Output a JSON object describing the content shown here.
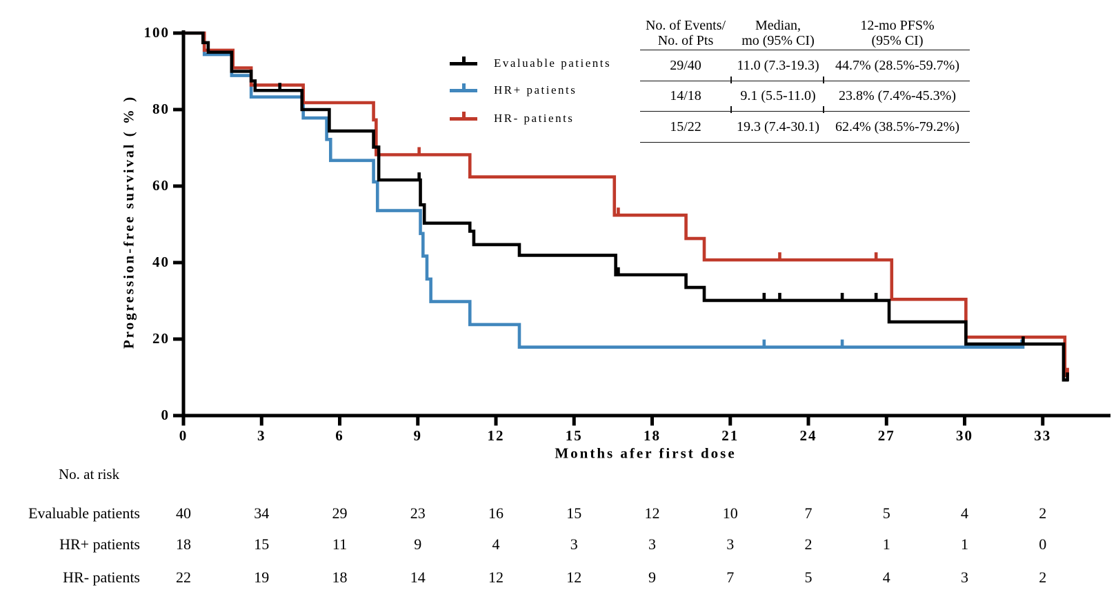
{
  "axes": {
    "x": {
      "label": "Months afer first dose",
      "ticks": [
        0,
        3,
        6,
        9,
        12,
        15,
        18,
        21,
        24,
        27,
        30,
        33
      ]
    },
    "y": {
      "label": "Progression-free survival ( % )",
      "ticks": [
        0,
        20,
        40,
        60,
        80,
        100
      ]
    }
  },
  "legend": [
    {
      "label": "Evaluable patients",
      "color": "#000000"
    },
    {
      "label": "HR+ patients",
      "color": "#4187BD"
    },
    {
      "label": "HR- patients",
      "color": "#C03A2B"
    }
  ],
  "stats_table": {
    "headers": [
      [
        "No. of Events/",
        "No. of Pts"
      ],
      [
        "Median,",
        "mo (95% CI)"
      ],
      [
        "12-mo PFS%",
        "(95% CI)"
      ]
    ],
    "rows": [
      [
        "29/40",
        "11.0 (7.3-19.3)",
        "44.7% (28.5%-59.7%)"
      ],
      [
        "14/18",
        "9.1 (5.5-11.0)",
        "23.8% (7.4%-45.3%)"
      ],
      [
        "15/22",
        "19.3 (7.4-30.1)",
        "62.4% (38.5%-79.2%)"
      ]
    ]
  },
  "risk_table": {
    "title": "No. at risk",
    "months": [
      0,
      3,
      6,
      9,
      12,
      15,
      18,
      21,
      24,
      27,
      30,
      33
    ],
    "rows": [
      {
        "label": "Evaluable patients",
        "values": [
          40,
          34,
          29,
          23,
          16,
          15,
          12,
          10,
          7,
          5,
          4,
          2
        ]
      },
      {
        "label": "HR+ patients",
        "values": [
          18,
          15,
          11,
          9,
          4,
          3,
          3,
          3,
          2,
          1,
          1,
          0
        ]
      },
      {
        "label": "HR- patients",
        "values": [
          22,
          19,
          18,
          14,
          12,
          12,
          9,
          7,
          5,
          4,
          3,
          2
        ]
      }
    ]
  },
  "chart_data": {
    "type": "line",
    "variant": "kaplan-meier-step",
    "title": "",
    "xlabel": "Months afer first dose",
    "ylabel": "Progression-free survival ( % )",
    "xlim": [
      0,
      35.6
    ],
    "ylim": [
      0,
      100
    ],
    "x_ticks": [
      0,
      3,
      6,
      9,
      12,
      15,
      18,
      21,
      24,
      27,
      30,
      33
    ],
    "y_ticks": [
      0,
      20,
      40,
      60,
      80,
      100
    ],
    "grid": false,
    "legend_position": "upper-center-left",
    "series": [
      {
        "name": "Evaluable patients",
        "color": "#000000",
        "n": 40,
        "events": 29,
        "median_months": "11.0 (7.3-19.3)",
        "pfs_12mo": "44.7% (28.5%-59.7%)",
        "start": [
          0,
          100
        ],
        "steps": [
          [
            0.75,
            97.5
          ],
          [
            0.95,
            95
          ],
          [
            1.85,
            90
          ],
          [
            2.6,
            87.5
          ],
          [
            2.75,
            85
          ],
          [
            4.55,
            80
          ],
          [
            5.6,
            74.4
          ],
          [
            7.3,
            70.2
          ],
          [
            7.5,
            61.6
          ],
          [
            9.1,
            55.1
          ],
          [
            9.25,
            50.3
          ],
          [
            11.0,
            48.2
          ],
          [
            11.15,
            44.7
          ],
          [
            12.9,
            41.9
          ],
          [
            16.6,
            36.8
          ],
          [
            19.3,
            33.5
          ],
          [
            20.0,
            30.1
          ],
          [
            27.1,
            24.5
          ],
          [
            30.05,
            18.7
          ],
          [
            33.8,
            9.3
          ]
        ],
        "end_month": 34.0,
        "censor_marks": [
          [
            3.7,
            85
          ],
          [
            9.05,
            61.6
          ],
          [
            16.7,
            36.8
          ],
          [
            22.3,
            30.1
          ],
          [
            22.9,
            30.1
          ],
          [
            25.3,
            30.1
          ],
          [
            26.6,
            30.1
          ],
          [
            32.25,
            18.7
          ],
          [
            33.95,
            9.3
          ]
        ]
      },
      {
        "name": "HR+ patients",
        "color": "#4187BD",
        "n": 18,
        "events": 14,
        "median_months": "9.1 (5.5-11.0)",
        "pfs_12mo": "23.8% (7.4%-45.3%)",
        "start": [
          0,
          100
        ],
        "steps": [
          [
            0.8,
            94.4
          ],
          [
            1.85,
            88.9
          ],
          [
            2.6,
            83.3
          ],
          [
            4.6,
            77.8
          ],
          [
            5.5,
            72.2
          ],
          [
            5.65,
            66.7
          ],
          [
            7.3,
            61.1
          ],
          [
            7.45,
            53.6
          ],
          [
            9.1,
            47.6
          ],
          [
            9.2,
            41.7
          ],
          [
            9.35,
            35.7
          ],
          [
            9.5,
            29.8
          ],
          [
            11.0,
            23.8
          ],
          [
            12.9,
            17.9
          ]
        ],
        "end_month": 32.3,
        "censor_marks": [
          [
            22.3,
            17.9
          ],
          [
            25.3,
            17.9
          ],
          [
            32.2,
            17.9
          ]
        ]
      },
      {
        "name": "HR- patients",
        "color": "#C03A2B",
        "n": 22,
        "events": 15,
        "median_months": "19.3 (7.4-30.1)",
        "pfs_12mo": "62.4% (38.5%-79.2%)",
        "start": [
          0,
          100
        ],
        "steps": [
          [
            0.8,
            95.5
          ],
          [
            1.9,
            90.9
          ],
          [
            2.6,
            86.4
          ],
          [
            4.6,
            81.8
          ],
          [
            7.3,
            77.3
          ],
          [
            7.4,
            68.2
          ],
          [
            11.0,
            62.4
          ],
          [
            16.55,
            52.4
          ],
          [
            19.3,
            46.3
          ],
          [
            20.0,
            40.7
          ],
          [
            27.2,
            30.4
          ],
          [
            30.05,
            20.5
          ],
          [
            33.85,
            10.5
          ]
        ],
        "end_month": 34.0,
        "censor_marks": [
          [
            9.05,
            68.2
          ],
          [
            16.7,
            52.4
          ],
          [
            22.9,
            40.7
          ],
          [
            26.6,
            40.7
          ],
          [
            33.95,
            10.5
          ]
        ]
      }
    ]
  }
}
